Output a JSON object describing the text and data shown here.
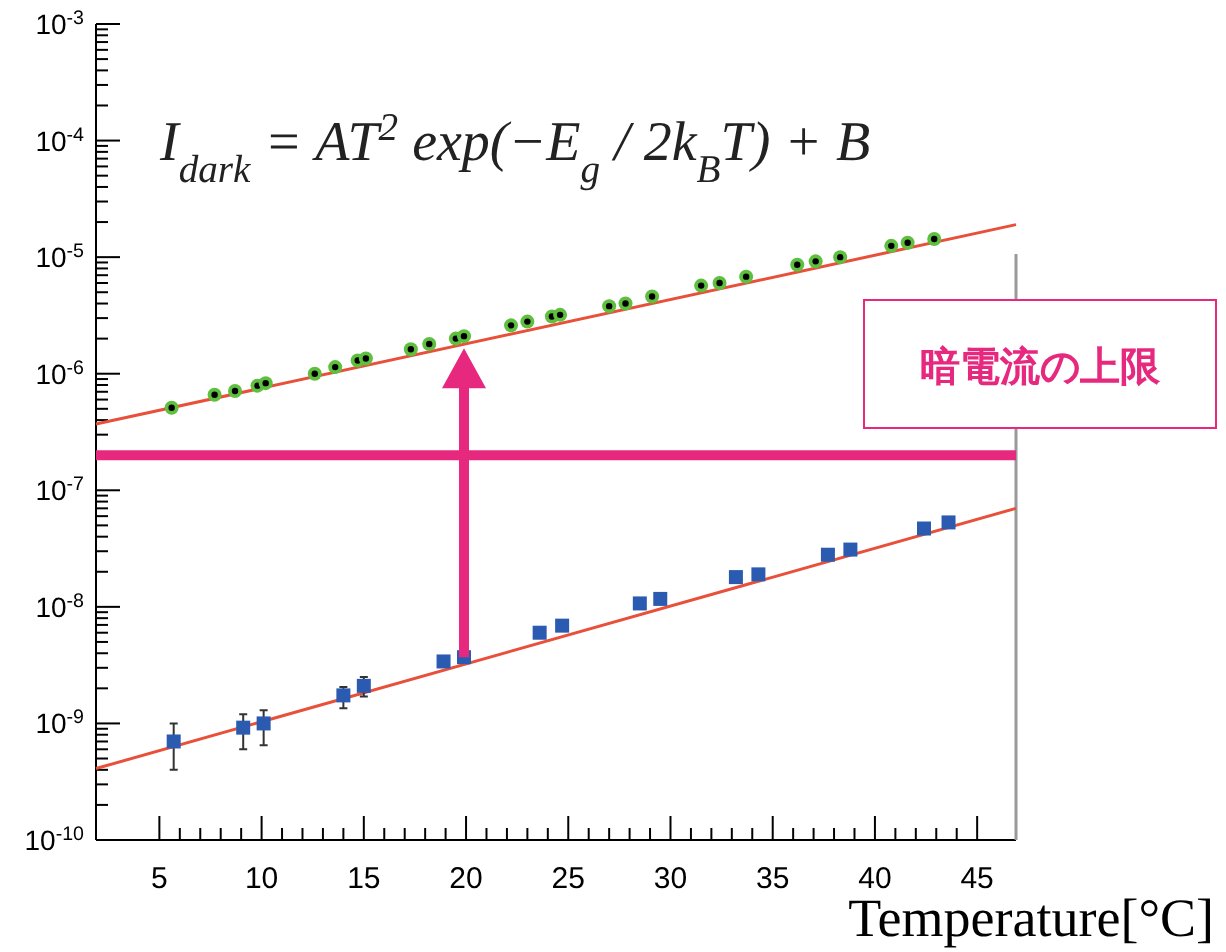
{
  "chart_data": {
    "type": "scatter",
    "xlabel": "Temperature[°C]",
    "log": "y",
    "xlim": [
      1.9,
      46.9
    ],
    "ylim": [
      1e-10,
      0.001
    ],
    "xticks": [
      5,
      10,
      15,
      20,
      25,
      30,
      35,
      40,
      45
    ],
    "yticks": [
      {
        "value": 1e-10,
        "label": "10$^{-10}$"
      },
      {
        "value": 1e-09,
        "label": "10$^{-9}$"
      },
      {
        "value": 1e-08,
        "label": "10$^{-8}$"
      },
      {
        "value": 1e-07,
        "label": "10$^{-7}$"
      },
      {
        "value": 1e-06,
        "label": "10$^{-6}$"
      },
      {
        "value": 1e-05,
        "label": "10$^{-5}$"
      },
      {
        "value": 0.0001,
        "label": "10$^{-4}$"
      },
      {
        "value": 0.001,
        "label": "10$^{-3}$"
      }
    ],
    "grid": false,
    "series": [
      {
        "type": "line",
        "color": "#e8503a",
        "x": [
          1.9,
          46.9
        ],
        "values": [
          3.7e-07,
          1.9e-05
        ]
      },
      {
        "type": "line",
        "color": "#e8503a",
        "x": [
          1.9,
          46.9
        ],
        "values": [
          4.1e-10,
          7e-08
        ]
      },
      {
        "marker": "circle",
        "color": "#5fbf3f",
        "x": [
          5.6,
          7.7,
          8.7,
          9.8,
          10.2,
          12.6,
          13.6,
          14.7,
          15.1,
          17.3,
          18.2,
          19.5,
          19.9,
          22.2,
          23.0,
          24.2,
          24.6,
          27.0,
          27.8,
          29.1,
          31.5,
          32.4,
          33.7,
          36.2,
          37.1,
          38.3,
          40.8,
          41.6,
          42.9
        ],
        "values": [
          5.1e-07,
          6.6e-07,
          7.1e-07,
          7.9e-07,
          8.3e-07,
          1e-06,
          1.14e-06,
          1.3e-06,
          1.35e-06,
          1.62e-06,
          1.8e-06,
          2e-06,
          2.1e-06,
          2.6e-06,
          2.8e-06,
          3.1e-06,
          3.2e-06,
          3.8e-06,
          4e-06,
          4.6e-06,
          5.7e-06,
          6e-06,
          6.8e-06,
          8.6e-06,
          9.2e-06,
          1e-05,
          1.25e-05,
          1.33e-05,
          1.43e-05
        ]
      },
      {
        "marker": "square",
        "color": "#2a5bb0",
        "x": [
          5.7,
          9.1,
          10.1,
          14.0,
          15.0,
          18.9,
          19.9,
          23.6,
          24.7,
          28.5,
          29.5,
          33.2,
          34.3,
          37.7,
          38.8,
          42.4,
          43.6
        ],
        "values": [
          7e-10,
          9.2e-10,
          1e-09,
          1.74e-09,
          2.1e-09,
          3.4e-09,
          3.7e-09,
          6e-09,
          6.9e-09,
          1.07e-08,
          1.17e-08,
          1.8e-08,
          1.9e-08,
          2.8e-08,
          3.1e-08,
          4.7e-08,
          5.3e-08
        ],
        "errors": [
          [
            4e-10,
            1e-09
          ],
          [
            6e-10,
            1.2e-09
          ],
          [
            6.5e-10,
            1.3e-09
          ],
          [
            1.35e-09,
            2.05e-09
          ],
          [
            1.7e-09,
            2.5e-09
          ],
          null,
          null,
          null,
          null,
          null,
          null,
          null,
          null,
          null,
          null,
          null,
          null
        ]
      }
    ],
    "ref_lines": [
      {
        "axis": "y",
        "value": 2e-07,
        "label": "暗電流の上限",
        "color": "#e6287f"
      }
    ],
    "annotations": [
      "I$_{dark}$ = AT$^{2}$ exp(−E$_{g}$ / 2k$_{B}$T) + B"
    ]
  }
}
